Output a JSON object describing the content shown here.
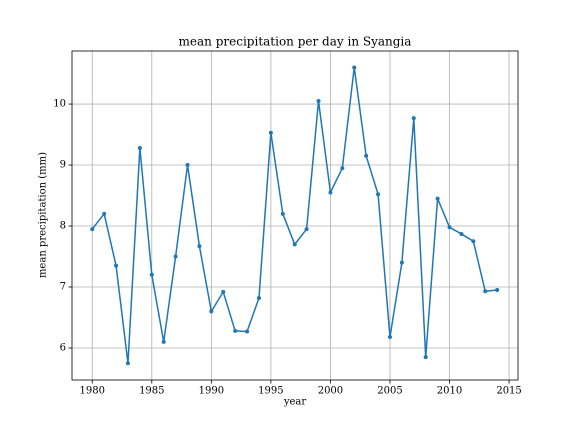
{
  "chart_data": {
    "type": "line",
    "title": "mean precipitation per day in Syangia",
    "xlabel": "year",
    "ylabel": "mean precipitation (mm)",
    "x": [
      1980,
      1981,
      1982,
      1983,
      1984,
      1985,
      1986,
      1987,
      1988,
      1989,
      1990,
      1991,
      1992,
      1993,
      1994,
      1995,
      1996,
      1997,
      1998,
      1999,
      2000,
      2001,
      2002,
      2003,
      2004,
      2005,
      2006,
      2007,
      2008,
      2009,
      2010,
      2011,
      2012,
      2013,
      2014
    ],
    "series": [
      {
        "name": "mean precipitation",
        "color": "#1f77b4",
        "values": [
          7.95,
          8.2,
          7.35,
          5.75,
          9.28,
          7.2,
          6.1,
          7.5,
          9.0,
          7.67,
          6.6,
          6.92,
          6.28,
          6.27,
          6.82,
          9.53,
          8.2,
          7.7,
          7.95,
          10.05,
          8.55,
          8.95,
          10.6,
          9.15,
          8.52,
          6.18,
          7.4,
          9.77,
          5.85,
          8.45,
          7.98,
          7.87,
          7.75,
          6.93,
          6.95
        ]
      }
    ],
    "xlim": [
      1978.3,
      2015.75
    ],
    "xticks": [
      1980,
      1985,
      1990,
      1995,
      2000,
      2005,
      2010,
      2015
    ],
    "ylim": [
      5.475,
      10.87
    ],
    "yticks": [
      6,
      7,
      8,
      9,
      10
    ],
    "grid": true
  }
}
